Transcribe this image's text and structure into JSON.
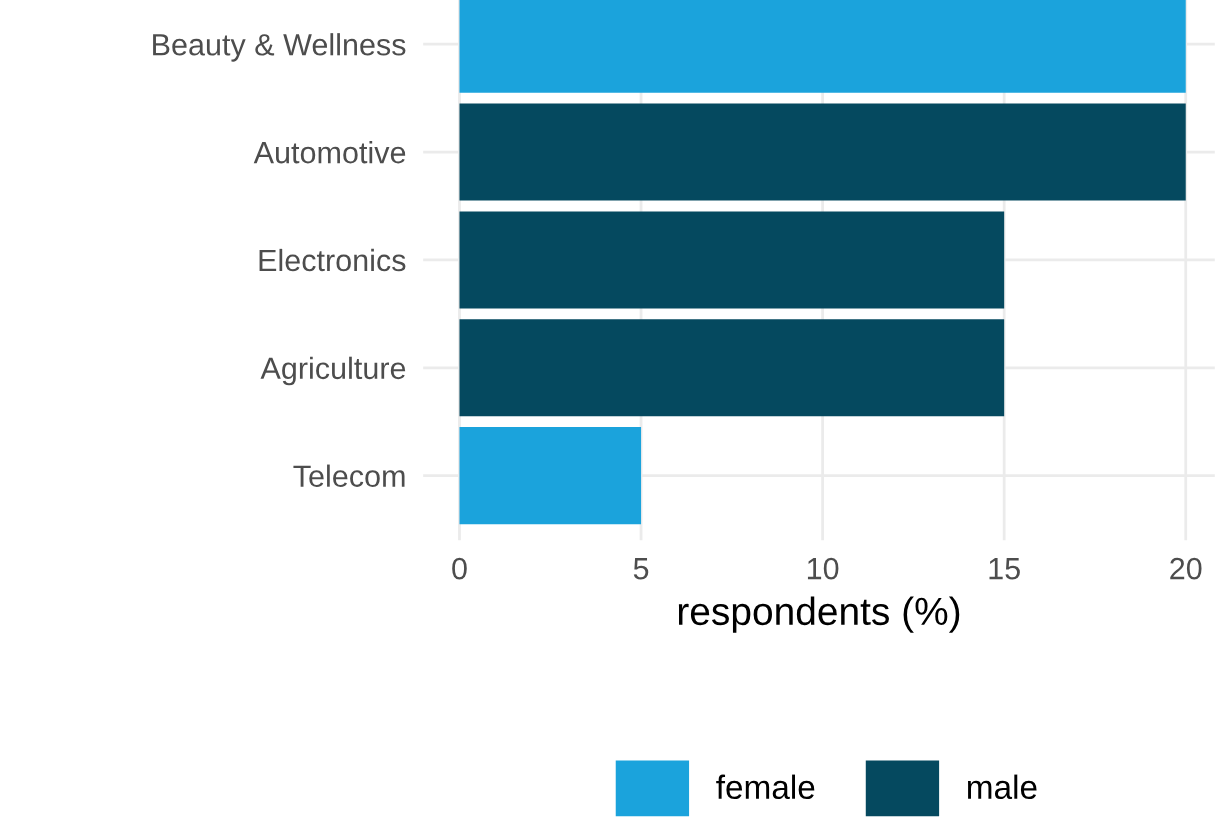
{
  "chart_data": {
    "type": "bar",
    "orientation": "horizontal",
    "xlabel": "respondents (%)",
    "categories": [
      "Beauty & Wellness",
      "Automotive",
      "Electronics",
      "Agriculture",
      "Telecom"
    ],
    "series": [
      {
        "name": "female",
        "color": "#1ba3dc",
        "values": [
          20,
          null,
          null,
          null,
          5
        ]
      },
      {
        "name": "male",
        "color": "#05495f",
        "values": [
          null,
          20,
          15,
          15,
          null
        ]
      }
    ],
    "xlim": [
      -1,
      20.8
    ],
    "xticks": [
      0,
      5,
      10,
      15,
      20
    ],
    "grid": true,
    "legend": "bottom"
  }
}
